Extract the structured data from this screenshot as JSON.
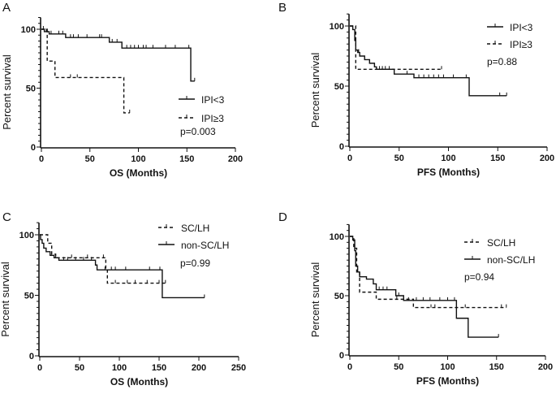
{
  "chart_data": [
    {
      "panel": "A",
      "type": "line",
      "subtype": "kaplan-meier",
      "xlabel": "OS (Months)",
      "ylabel": "Percent survival",
      "xlim": [
        0,
        200
      ],
      "xticks": [
        0,
        50,
        100,
        150,
        200
      ],
      "ylim": [
        0,
        100
      ],
      "yticks": [
        0,
        50,
        100
      ],
      "legend": "right",
      "annotation": "p=0.003",
      "series": [
        {
          "name": "IPI<3",
          "style": "solid",
          "steps": [
            [
              0,
              100
            ],
            [
              3,
              98
            ],
            [
              8,
              96
            ],
            [
              25,
              93
            ],
            [
              70,
              89
            ],
            [
              83,
              84
            ],
            [
              154,
              56
            ]
          ],
          "end": 158,
          "censored": [
            [
              5,
              98
            ],
            [
              10,
              96
            ],
            [
              18,
              96
            ],
            [
              22,
              96
            ],
            [
              30,
              93
            ],
            [
              33,
              93
            ],
            [
              38,
              93
            ],
            [
              47,
              93
            ],
            [
              60,
              93
            ],
            [
              62,
              93
            ],
            [
              73,
              89
            ],
            [
              78,
              89
            ],
            [
              88,
              84
            ],
            [
              92,
              84
            ],
            [
              96,
              84
            ],
            [
              100,
              84
            ],
            [
              105,
              84
            ],
            [
              108,
              84
            ],
            [
              115,
              84
            ],
            [
              128,
              84
            ],
            [
              138,
              84
            ],
            [
              152,
              84
            ],
            [
              158,
              56
            ]
          ]
        },
        {
          "name": "IPI≥3",
          "style": "dashed",
          "steps": [
            [
              0,
              100
            ],
            [
              6,
              73
            ],
            [
              14,
              59
            ],
            [
              85,
              29
            ]
          ],
          "end": 91,
          "censored": [
            [
              2,
              100
            ],
            [
              30,
              59
            ],
            [
              37,
              59
            ],
            [
              91,
              29
            ]
          ]
        }
      ]
    },
    {
      "panel": "B",
      "type": "line",
      "subtype": "kaplan-meier",
      "xlabel": "PFS (Months)",
      "ylabel": "Percent survival",
      "xlim": [
        0,
        200
      ],
      "xticks": [
        0,
        50,
        100,
        150,
        200
      ],
      "ylim": [
        0,
        100
      ],
      "yticks": [
        0,
        50,
        100
      ],
      "legend": "top-right",
      "annotation": "p=0.88",
      "series": [
        {
          "name": "IPI<3",
          "style": "solid",
          "steps": [
            [
              0,
              100
            ],
            [
              3,
              97
            ],
            [
              5,
              88
            ],
            [
              6,
              80
            ],
            [
              8,
              78
            ],
            [
              10,
              75
            ],
            [
              15,
              72
            ],
            [
              20,
              69
            ],
            [
              25,
              66
            ],
            [
              27,
              64
            ],
            [
              45,
              60
            ],
            [
              65,
              57
            ],
            [
              121,
              42
            ]
          ],
          "end": 159,
          "censored": [
            [
              9,
              78
            ],
            [
              30,
              64
            ],
            [
              33,
              64
            ],
            [
              36,
              64
            ],
            [
              40,
              64
            ],
            [
              58,
              60
            ],
            [
              70,
              57
            ],
            [
              75,
              57
            ],
            [
              80,
              57
            ],
            [
              85,
              57
            ],
            [
              90,
              57
            ],
            [
              95,
              57
            ],
            [
              105,
              57
            ],
            [
              118,
              57
            ],
            [
              152,
              42
            ],
            [
              159,
              42
            ]
          ]
        },
        {
          "name": "IPI≥3",
          "style": "dashed",
          "steps": [
            [
              0,
              100
            ],
            [
              6,
              64
            ]
          ],
          "end": 93,
          "censored": [
            [
              93,
              64
            ]
          ]
        }
      ]
    },
    {
      "panel": "C",
      "type": "line",
      "subtype": "kaplan-meier",
      "xlabel": "OS (Months)",
      "ylabel": "Percent survival",
      "xlim": [
        0,
        250
      ],
      "xticks": [
        0,
        50,
        100,
        150,
        200,
        250
      ],
      "ylim": [
        0,
        100
      ],
      "yticks": [
        0,
        50,
        100
      ],
      "legend": "top-right",
      "annotation": "p=0.99",
      "series": [
        {
          "name": "SC/LH",
          "style": "dashed",
          "steps": [
            [
              0,
              100
            ],
            [
              10,
              93
            ],
            [
              15,
              84
            ],
            [
              20,
              81
            ],
            [
              83,
              71
            ],
            [
              85,
              60
            ]
          ],
          "end": 158,
          "censored": [
            [
              40,
              81
            ],
            [
              60,
              81
            ],
            [
              80,
              81
            ],
            [
              95,
              60
            ],
            [
              110,
              60
            ],
            [
              120,
              60
            ],
            [
              135,
              60
            ],
            [
              150,
              60
            ],
            [
              158,
              60
            ]
          ]
        },
        {
          "name": "non-SC/LH",
          "style": "solid",
          "steps": [
            [
              0,
              100
            ],
            [
              1,
              96
            ],
            [
              3,
              93
            ],
            [
              5,
              89
            ],
            [
              8,
              86
            ],
            [
              13,
              83
            ],
            [
              18,
              81
            ],
            [
              24,
              79
            ],
            [
              70,
              75
            ],
            [
              72,
              71
            ],
            [
              154,
              48
            ]
          ],
          "end": 207,
          "censored": [
            [
              20,
              81
            ],
            [
              30,
              79
            ],
            [
              35,
              79
            ],
            [
              45,
              79
            ],
            [
              55,
              79
            ],
            [
              65,
              79
            ],
            [
              82,
              71
            ],
            [
              90,
              71
            ],
            [
              95,
              71
            ],
            [
              108,
              71
            ],
            [
              138,
              71
            ],
            [
              151,
              71
            ],
            [
              207,
              48
            ]
          ]
        }
      ]
    },
    {
      "panel": "D",
      "type": "line",
      "subtype": "kaplan-meier",
      "xlabel": "PFS (Months)",
      "ylabel": "Percent survival",
      "xlim": [
        0,
        200
      ],
      "xticks": [
        0,
        50,
        100,
        150,
        200
      ],
      "ylim": [
        0,
        100
      ],
      "yticks": [
        0,
        50,
        100
      ],
      "legend": "top-right",
      "annotation": "p=0.94",
      "series": [
        {
          "name": "SC/LH",
          "style": "dashed",
          "steps": [
            [
              0,
              100
            ],
            [
              4,
              90
            ],
            [
              7,
              70
            ],
            [
              10,
              53
            ],
            [
              27,
              47
            ],
            [
              65,
              40
            ]
          ],
          "end": 160,
          "censored": [
            [
              48,
              47
            ],
            [
              83,
              40
            ],
            [
              87,
              40
            ],
            [
              118,
              40
            ],
            [
              155,
              40
            ],
            [
              160,
              40
            ]
          ]
        },
        {
          "name": "non-SC/LH",
          "style": "solid",
          "steps": [
            [
              0,
              100
            ],
            [
              3,
              97
            ],
            [
              5,
              88
            ],
            [
              6,
              75
            ],
            [
              8,
              70
            ],
            [
              10,
              66
            ],
            [
              17,
              64
            ],
            [
              24,
              60
            ],
            [
              27,
              55
            ],
            [
              47,
              50
            ],
            [
              55,
              46
            ],
            [
              109,
              31
            ],
            [
              121,
              15
            ]
          ],
          "end": 152,
          "censored": [
            [
              30,
              55
            ],
            [
              34,
              55
            ],
            [
              38,
              55
            ],
            [
              50,
              50
            ],
            [
              60,
              46
            ],
            [
              68,
              46
            ],
            [
              75,
              46
            ],
            [
              82,
              46
            ],
            [
              92,
              46
            ],
            [
              100,
              46
            ],
            [
              107,
              46
            ],
            [
              152,
              15
            ]
          ]
        }
      ]
    }
  ]
}
